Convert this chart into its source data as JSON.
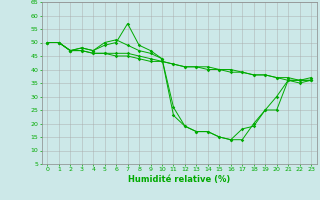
{
  "xlabel": "Humidité relative (%)",
  "background_color": "#cce8e8",
  "grid_color": "#aaaaaa",
  "line_color": "#00aa00",
  "xlim": [
    -0.5,
    23.5
  ],
  "ylim": [
    5,
    65
  ],
  "yticks": [
    5,
    10,
    15,
    20,
    25,
    30,
    35,
    40,
    45,
    50,
    55,
    60,
    65
  ],
  "xticks": [
    0,
    1,
    2,
    3,
    4,
    5,
    6,
    7,
    8,
    9,
    10,
    11,
    12,
    13,
    14,
    15,
    16,
    17,
    18,
    19,
    20,
    21,
    22,
    23
  ],
  "series": [
    {
      "x": [
        0,
        1,
        2,
        3,
        4,
        5,
        6,
        7,
        8,
        9,
        10,
        11,
        12,
        13,
        14,
        15,
        16,
        17,
        18,
        19,
        20,
        21,
        22,
        23
      ],
      "y": [
        50,
        50,
        47,
        48,
        47,
        49,
        50,
        57,
        49,
        47,
        44,
        23,
        19,
        17,
        17,
        15,
        14,
        14,
        20,
        25,
        25,
        36,
        36,
        37
      ]
    },
    {
      "x": [
        0,
        1,
        2,
        3,
        4,
        5,
        6,
        7,
        8,
        9,
        10,
        11,
        12,
        13,
        14,
        15,
        16,
        17,
        18,
        19,
        20,
        21,
        22,
        23
      ],
      "y": [
        50,
        50,
        47,
        48,
        47,
        50,
        51,
        49,
        47,
        46,
        44,
        26,
        19,
        17,
        17,
        15,
        14,
        18,
        19,
        25,
        30,
        36,
        35,
        36
      ]
    },
    {
      "x": [
        0,
        1,
        2,
        3,
        4,
        5,
        6,
        7,
        8,
        9,
        10,
        11,
        12,
        13,
        14,
        15,
        16,
        17,
        18,
        19,
        20,
        21,
        22,
        23
      ],
      "y": [
        50,
        50,
        47,
        47,
        46,
        46,
        46,
        46,
        45,
        44,
        43,
        42,
        41,
        41,
        41,
        40,
        40,
        39,
        38,
        38,
        37,
        37,
        36,
        36
      ]
    },
    {
      "x": [
        0,
        1,
        2,
        3,
        4,
        5,
        6,
        7,
        8,
        9,
        10,
        11,
        12,
        13,
        14,
        15,
        16,
        17,
        18,
        19,
        20,
        21,
        22,
        23
      ],
      "y": [
        50,
        50,
        47,
        47,
        46,
        46,
        45,
        45,
        44,
        43,
        43,
        42,
        41,
        41,
        40,
        40,
        39,
        39,
        38,
        38,
        37,
        36,
        36,
        36
      ]
    }
  ]
}
